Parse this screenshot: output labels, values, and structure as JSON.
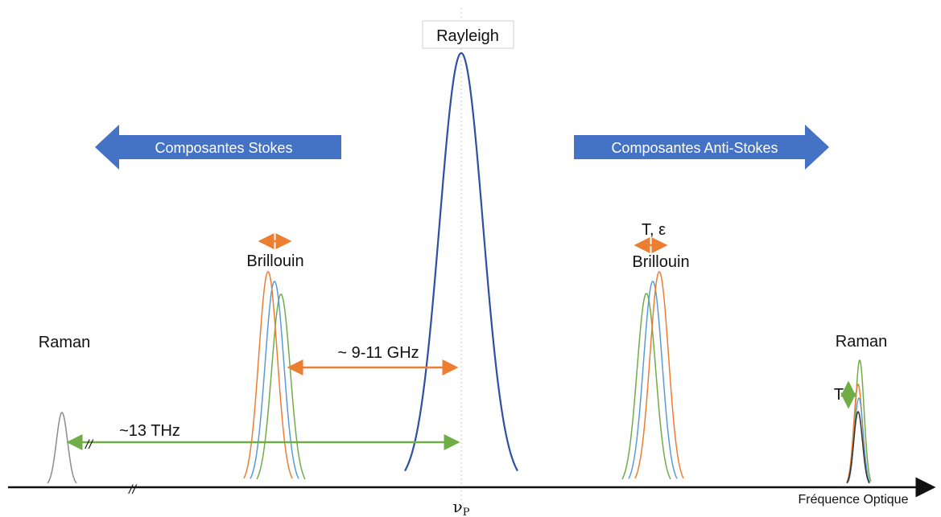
{
  "labels": {
    "rayleigh": "Rayleigh",
    "stokes": "Composantes Stokes",
    "anti_stokes": "Composantes Anti-Stokes",
    "brillouin_left": "Brillouin",
    "brillouin_right": "Brillouin",
    "raman_left": "Raman",
    "raman_right": "Raman",
    "te": "T, ε",
    "t": "T",
    "gap_ghz": "~ 9-11 GHz",
    "gap_thz": "~13 THz",
    "axis": "Fréquence Optique",
    "nu_p": "ν",
    "nu_p_sub": "P",
    "break_mark": "//"
  },
  "colors": {
    "rayleigh": "#2e4fa3",
    "arrow_fill": "#4472c4",
    "orange": "#ed7d31",
    "blue": "#5b9bd5",
    "green": "#70ad47",
    "gray": "#8c8c8c",
    "axis": "#111111"
  }
}
